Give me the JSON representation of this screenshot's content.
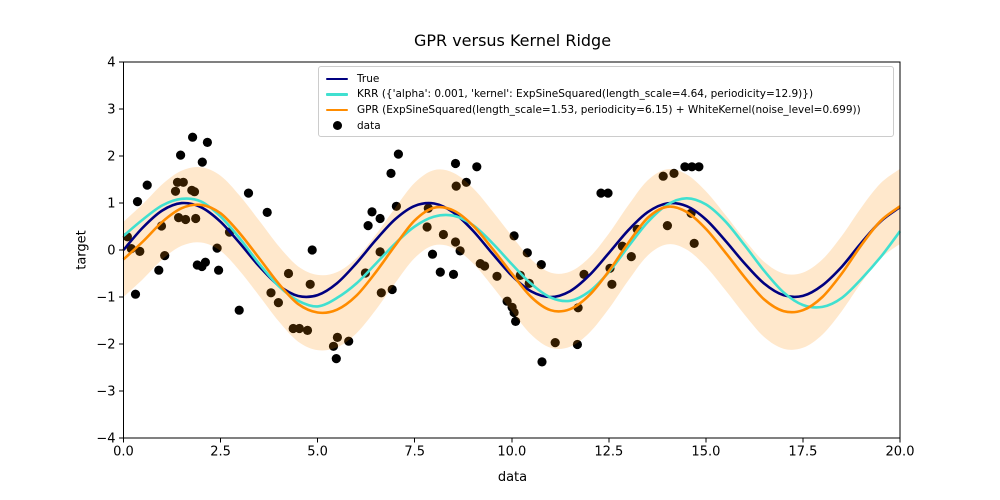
{
  "chart_data": {
    "type": "line",
    "title": "GPR versus Kernel Ridge",
    "xlabel": "data",
    "ylabel": "target",
    "xlim": [
      0,
      20
    ],
    "ylim": [
      -4,
      4
    ],
    "grid": false,
    "legend_position": "upper center inside axes",
    "xticks": {
      "values": [
        0,
        2.5,
        5,
        7.5,
        10,
        12.5,
        15,
        17.5,
        20
      ],
      "labels": [
        "0.0",
        "2.5",
        "5.0",
        "7.5",
        "10.0",
        "12.5",
        "15.0",
        "17.5",
        "20.0"
      ]
    },
    "yticks": {
      "values": [
        -4,
        -3,
        -2,
        -1,
        0,
        1,
        2,
        3,
        4
      ],
      "labels": [
        "−4",
        "−3",
        "−2",
        "−1",
        "0",
        "1",
        "2",
        "3",
        "4"
      ]
    },
    "x": [
      0,
      0.5,
      1,
      1.5,
      2,
      2.5,
      3,
      3.5,
      4,
      4.5,
      5,
      5.5,
      6,
      6.5,
      7,
      7.5,
      8,
      8.5,
      9,
      9.5,
      10,
      10.5,
      11,
      11.5,
      12,
      12.5,
      13,
      13.5,
      14,
      14.5,
      15,
      15.5,
      16,
      16.5,
      17,
      17.5,
      18,
      18.5,
      19,
      19.5,
      20
    ],
    "series": [
      {
        "name": "True",
        "color": "#000080",
        "linewidth": 2,
        "values": [
          0,
          0.479,
          0.841,
          0.997,
          0.909,
          0.599,
          0.141,
          -0.351,
          -0.757,
          -0.978,
          -0.959,
          -0.706,
          -0.279,
          0.215,
          0.657,
          0.938,
          0.989,
          0.798,
          0.412,
          -0.075,
          -0.544,
          -0.88,
          -1.0,
          -0.876,
          -0.537,
          -0.066,
          0.42,
          0.804,
          0.991,
          0.935,
          0.65,
          0.201,
          -0.288,
          -0.713,
          -0.961,
          -0.976,
          -0.751,
          -0.355,
          0.15,
          0.606,
          0.913
        ]
      },
      {
        "name": "KRR ({'alpha': 0.001, 'kernel': ExpSineSquared(length_scale=4.64, periodicity=12.9)})",
        "color": "#40E0D0",
        "linewidth": 2,
        "values": [
          0.3,
          0.65,
          0.95,
          1.09,
          1.03,
          0.71,
          0.24,
          -0.3,
          -0.77,
          -1.08,
          -1.2,
          -1.02,
          -0.71,
          -0.29,
          0.14,
          0.5,
          0.71,
          0.73,
          0.53,
          0.15,
          -0.3,
          -0.72,
          -1.01,
          -1.08,
          -0.88,
          -0.47,
          0.07,
          0.59,
          0.96,
          1.1,
          0.97,
          0.61,
          0.1,
          -0.44,
          -0.9,
          -1.17,
          -1.21,
          -1.02,
          -0.62,
          -0.15,
          0.4
        ]
      },
      {
        "name": "GPR (ExpSineSquared(length_scale=1.53, periodicity=6.15) + WhiteKernel(noise_level=0.699))",
        "color": "#FF8C00",
        "linewidth": 2,
        "values": [
          -0.2,
          0.18,
          0.6,
          0.89,
          0.96,
          0.78,
          0.35,
          -0.18,
          -0.72,
          -1.15,
          -1.33,
          -1.27,
          -0.97,
          -0.47,
          0.1,
          0.63,
          0.9,
          0.84,
          0.52,
          0.03,
          -0.5,
          -1.0,
          -1.28,
          -1.26,
          -0.96,
          -0.45,
          0.15,
          0.68,
          0.92,
          0.81,
          0.45,
          -0.05,
          -0.58,
          -1.05,
          -1.3,
          -1.28,
          -1.0,
          -0.5,
          0.1,
          0.62,
          0.93
        ]
      }
    ],
    "confidence_band": {
      "attached_to": "GPR",
      "color": "#FF8C00",
      "alpha": 0.2,
      "half_width": 0.8
    },
    "scatter": {
      "name": "data",
      "color": "#000000",
      "points": [
        [
          0.1,
          0.28
        ],
        [
          0.2,
          0.03
        ],
        [
          0.31,
          -0.94
        ],
        [
          0.36,
          1.03
        ],
        [
          0.42,
          -0.03
        ],
        [
          0.61,
          1.38
        ],
        [
          0.91,
          -0.43
        ],
        [
          0.98,
          0.51
        ],
        [
          1.06,
          -0.12
        ],
        [
          1.34,
          1.25
        ],
        [
          1.39,
          1.44
        ],
        [
          1.42,
          0.69
        ],
        [
          1.47,
          2.02
        ],
        [
          1.54,
          1.44
        ],
        [
          1.6,
          0.65
        ],
        [
          1.76,
          1.27
        ],
        [
          1.78,
          2.4
        ],
        [
          1.83,
          1.24
        ],
        [
          1.86,
          0.67
        ],
        [
          1.9,
          -0.32
        ],
        [
          2.02,
          -0.35
        ],
        [
          2.03,
          1.87
        ],
        [
          2.11,
          -0.26
        ],
        [
          2.16,
          2.29
        ],
        [
          2.41,
          0.04
        ],
        [
          2.45,
          -0.43
        ],
        [
          2.73,
          0.38
        ],
        [
          2.98,
          -1.28
        ],
        [
          3.22,
          1.21
        ],
        [
          3.7,
          0.8
        ],
        [
          3.8,
          -0.91
        ],
        [
          3.99,
          -1.12
        ],
        [
          4.25,
          -0.5
        ],
        [
          4.37,
          -1.67
        ],
        [
          4.53,
          -1.67
        ],
        [
          4.74,
          -1.71
        ],
        [
          4.81,
          -0.73
        ],
        [
          4.86,
          0.0
        ],
        [
          5.41,
          -2.05
        ],
        [
          5.48,
          -2.31
        ],
        [
          5.51,
          -1.86
        ],
        [
          5.8,
          -1.94
        ],
        [
          6.23,
          -0.49
        ],
        [
          6.3,
          0.52
        ],
        [
          6.4,
          0.81
        ],
        [
          6.61,
          0.67
        ],
        [
          6.61,
          -0.04
        ],
        [
          6.64,
          -0.91
        ],
        [
          6.89,
          1.63
        ],
        [
          6.92,
          -0.84
        ],
        [
          7.03,
          0.93
        ],
        [
          7.08,
          2.04
        ],
        [
          7.82,
          0.49
        ],
        [
          7.85,
          0.89
        ],
        [
          7.96,
          -0.09
        ],
        [
          8.16,
          -0.47
        ],
        [
          8.24,
          0.33
        ],
        [
          8.5,
          -0.52
        ],
        [
          8.55,
          1.84
        ],
        [
          8.55,
          0.17
        ],
        [
          8.57,
          1.36
        ],
        [
          8.67,
          -0.02
        ],
        [
          8.83,
          1.44
        ],
        [
          9.1,
          1.77
        ],
        [
          9.19,
          -0.29
        ],
        [
          9.3,
          -0.34
        ],
        [
          9.62,
          -0.56
        ],
        [
          9.88,
          -1.09
        ],
        [
          10.01,
          -1.22
        ],
        [
          10.06,
          -1.33
        ],
        [
          10.06,
          0.3
        ],
        [
          10.1,
          -1.52
        ],
        [
          10.22,
          -0.54
        ],
        [
          10.4,
          -0.06
        ],
        [
          10.45,
          -0.71
        ],
        [
          10.76,
          -0.31
        ],
        [
          10.78,
          -2.38
        ],
        [
          11.12,
          -1.97
        ],
        [
          11.69,
          -2.01
        ],
        [
          11.71,
          -1.23
        ],
        [
          11.86,
          -0.52
        ],
        [
          12.3,
          1.21
        ],
        [
          12.48,
          1.21
        ],
        [
          12.53,
          -0.39
        ],
        [
          12.58,
          -0.73
        ],
        [
          12.85,
          0.08
        ],
        [
          13.08,
          -0.14
        ],
        [
          13.23,
          0.44
        ],
        [
          13.9,
          1.57
        ],
        [
          14.01,
          0.52
        ],
        [
          14.18,
          1.63
        ],
        [
          14.46,
          1.77
        ],
        [
          14.62,
          0.78
        ],
        [
          14.64,
          1.77
        ],
        [
          14.7,
          0.14
        ],
        [
          14.82,
          1.77
        ]
      ]
    }
  },
  "legend": {
    "entries": [
      {
        "label": "True",
        "marker": "line",
        "color": "#000080"
      },
      {
        "label": "KRR ({'alpha': 0.001, 'kernel': ExpSineSquared(length_scale=4.64, periodicity=12.9)})",
        "marker": "line",
        "color": "#40E0D0"
      },
      {
        "label": "GPR (ExpSineSquared(length_scale=1.53, periodicity=6.15) + WhiteKernel(noise_level=0.699))",
        "marker": "line",
        "color": "#FF8C00"
      },
      {
        "label": "data",
        "marker": "dot",
        "color": "#000000"
      }
    ]
  },
  "style": {
    "background": "#ffffff",
    "spine_color": "#000000",
    "tick_color": "#000000",
    "band_fill": "rgba(255,140,0,0.2)"
  }
}
